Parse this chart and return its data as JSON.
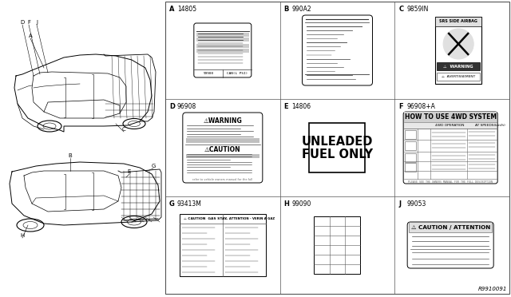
{
  "bg_color": "#ffffff",
  "ref_code": "R9910091",
  "gx0": 207,
  "gx1": 638,
  "gy0": 2,
  "gy1": 368,
  "cell_info": [
    {
      "label": "A",
      "code": "14805",
      "col": 0,
      "row": 0
    },
    {
      "label": "B",
      "code": "990A2",
      "col": 1,
      "row": 0
    },
    {
      "label": "C",
      "code": "9859IN",
      "col": 2,
      "row": 0
    },
    {
      "label": "D",
      "code": "96908",
      "col": 0,
      "row": 1
    },
    {
      "label": "E",
      "code": "14806",
      "col": 1,
      "row": 1
    },
    {
      "label": "F",
      "code": "96908+A",
      "col": 2,
      "row": 1
    },
    {
      "label": "G",
      "code": "93413M",
      "col": 0,
      "row": 2
    },
    {
      "label": "H",
      "code": "99090",
      "col": 1,
      "row": 2
    },
    {
      "label": "J",
      "code": "99053",
      "col": 2,
      "row": 2
    }
  ]
}
